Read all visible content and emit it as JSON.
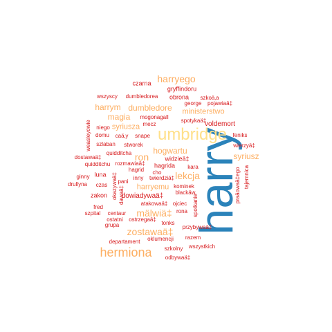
{
  "colors": {
    "red": "#d7191c",
    "orange": "#fdae61",
    "yellow": "#ffe08a",
    "blue": "#2b83ba"
  },
  "words": [
    "harry",
    "umbridge",
    "hermiona",
    "harryego",
    "zostawaä‡",
    "mälwiä‡",
    "lekcja",
    "ron",
    "hogwartu",
    "magia",
    "harrym",
    "dumbledore",
    "syriusz",
    "ministerstwo",
    "harryemu",
    "syriusza",
    "voldemort",
    "dowiadywaä‡",
    "czarna",
    "gryffindoru",
    "obrona",
    "szkoä‚a",
    "wszyscy",
    "dumbledorea",
    "george",
    "pojawiaä‡",
    "mogonagall",
    "mecz",
    "spotykaä‡",
    "niego",
    "domu",
    "weasleyowie",
    "caä‚y",
    "snape",
    "feniks",
    "szlaban",
    "stworek",
    "wierzyä‡",
    "quidditcha",
    "widzieä‡",
    "dostawaä‡",
    "quidditchu",
    "rozmawiaä‡",
    "hagrida",
    "kara",
    "hagrid",
    "cho",
    "ginny",
    "luna",
    "inny",
    "twierdziä‡",
    "drullyna",
    "czas",
    "pani",
    "kominek",
    "blackäw",
    "tajemnica",
    "praäowaä‡ego",
    "okazywaä‡",
    "dawaä‡",
    "zakon",
    "atakowaä‡",
    "ojciec",
    "fred",
    "rona",
    "spotkanie",
    "szpital",
    "centaur",
    "ostatni",
    "ostrzegaä‡",
    "tonks",
    "grupa",
    "przybywaä‡",
    "oklumencji",
    "razem",
    "departament",
    "szkolny",
    "wszystkich",
    "odbywaä‡"
  ]
}
